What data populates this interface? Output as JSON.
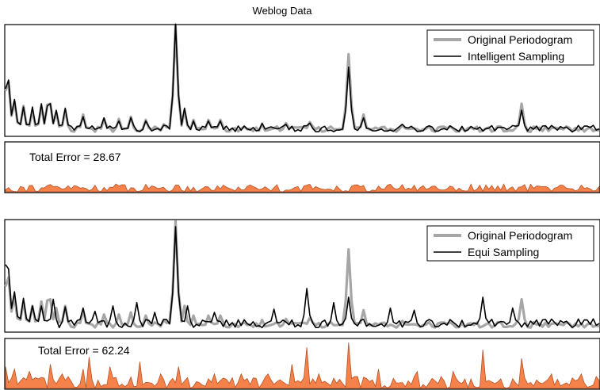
{
  "title": "Weblog Data",
  "colors": {
    "original": "#a6a6a6",
    "approx": "#000000",
    "error_fill": "#f4824a",
    "error_stroke": "#b4552a",
    "frame": "#000000"
  },
  "chart_data": [
    {
      "type": "line",
      "title": "Weblog Data",
      "xlabel": "",
      "ylabel": "",
      "ylim": [
        0,
        1.0
      ],
      "x_count": 200,
      "legend_placement": "top-right",
      "grid": false,
      "series": [
        {
          "name": "Original Periodogram",
          "peaks": [
            [
              0,
              0.4
            ],
            [
              1,
              0.48
            ],
            [
              3,
              0.3
            ],
            [
              6,
              0.26
            ],
            [
              9,
              0.22
            ],
            [
              12,
              0.26
            ],
            [
              14,
              0.27
            ],
            [
              15,
              0.28
            ],
            [
              17,
              0.2
            ],
            [
              20,
              0.22
            ],
            [
              26,
              0.18
            ],
            [
              33,
              0.14
            ],
            [
              38,
              0.14
            ],
            [
              42,
              0.16
            ],
            [
              47,
              0.13
            ],
            [
              53,
              0.09
            ],
            [
              57,
              1.0
            ],
            [
              60,
              0.22
            ],
            [
              63,
              0.13
            ],
            [
              68,
              0.13
            ],
            [
              72,
              0.13
            ],
            [
              86,
              0.09
            ],
            [
              94,
              0.1
            ],
            [
              102,
              0.11
            ],
            [
              115,
              0.74
            ],
            [
              120,
              0.18
            ],
            [
              133,
              0.08
            ],
            [
              142,
              0.07
            ],
            [
              156,
              0.06
            ],
            [
              165,
              0.07
            ],
            [
              173,
              0.28
            ],
            [
              188,
              0.07
            ],
            [
              196,
              0.06
            ]
          ],
          "noise": 0.05
        },
        {
          "name": "Intelligent Sampling",
          "peaks": [
            [
              0,
              0.42
            ],
            [
              1,
              0.5
            ],
            [
              3,
              0.32
            ],
            [
              6,
              0.25
            ],
            [
              9,
              0.25
            ],
            [
              12,
              0.28
            ],
            [
              14,
              0.26
            ],
            [
              15,
              0.28
            ],
            [
              17,
              0.22
            ],
            [
              20,
              0.24
            ],
            [
              26,
              0.16
            ],
            [
              33,
              0.15
            ],
            [
              38,
              0.12
            ],
            [
              42,
              0.15
            ],
            [
              47,
              0.12
            ],
            [
              53,
              0.08
            ],
            [
              57,
              1.02
            ],
            [
              60,
              0.24
            ],
            [
              63,
              0.12
            ],
            [
              68,
              0.12
            ],
            [
              72,
              0.12
            ],
            [
              86,
              0.1
            ],
            [
              94,
              0.09
            ],
            [
              102,
              0.1
            ],
            [
              115,
              0.62
            ],
            [
              120,
              0.15
            ],
            [
              133,
              0.09
            ],
            [
              142,
              0.07
            ],
            [
              156,
              0.07
            ],
            [
              165,
              0.06
            ],
            [
              173,
              0.22
            ],
            [
              188,
              0.06
            ],
            [
              196,
              0.06
            ]
          ],
          "noise": 0.06
        }
      ]
    },
    {
      "type": "area",
      "label": "Total Error = 28.67",
      "ylim": [
        0,
        1.0
      ],
      "x_count": 200,
      "values_scale": 0.12,
      "grid": false
    },
    {
      "type": "line",
      "xlabel": "",
      "ylabel": "",
      "ylim": [
        0,
        1.0
      ],
      "x_count": 200,
      "legend_placement": "top-right",
      "grid": false,
      "series": [
        {
          "name": "Original Periodogram",
          "peaks": [
            [
              0,
              0.4
            ],
            [
              1,
              0.48
            ],
            [
              3,
              0.3
            ],
            [
              6,
              0.26
            ],
            [
              9,
              0.22
            ],
            [
              12,
              0.26
            ],
            [
              14,
              0.27
            ],
            [
              15,
              0.28
            ],
            [
              17,
              0.2
            ],
            [
              20,
              0.22
            ],
            [
              26,
              0.18
            ],
            [
              33,
              0.14
            ],
            [
              38,
              0.14
            ],
            [
              42,
              0.16
            ],
            [
              47,
              0.13
            ],
            [
              53,
              0.09
            ],
            [
              57,
              1.0
            ],
            [
              60,
              0.22
            ],
            [
              63,
              0.13
            ],
            [
              68,
              0.13
            ],
            [
              72,
              0.13
            ],
            [
              86,
              0.09
            ],
            [
              94,
              0.1
            ],
            [
              102,
              0.11
            ],
            [
              115,
              0.74
            ],
            [
              120,
              0.18
            ],
            [
              133,
              0.08
            ],
            [
              142,
              0.07
            ],
            [
              156,
              0.06
            ],
            [
              165,
              0.07
            ],
            [
              173,
              0.28
            ],
            [
              188,
              0.07
            ],
            [
              196,
              0.06
            ]
          ],
          "noise": 0.05
        },
        {
          "name": "Equi Sampling",
          "peaks": [
            [
              0,
              0.6
            ],
            [
              1,
              0.56
            ],
            [
              3,
              0.35
            ],
            [
              6,
              0.29
            ],
            [
              9,
              0.22
            ],
            [
              12,
              0.22
            ],
            [
              16,
              0.28
            ],
            [
              20,
              0.21
            ],
            [
              26,
              0.2
            ],
            [
              30,
              0.17
            ],
            [
              36,
              0.22
            ],
            [
              44,
              0.25
            ],
            [
              50,
              0.16
            ],
            [
              57,
              0.95
            ],
            [
              61,
              0.22
            ],
            [
              70,
              0.16
            ],
            [
              90,
              0.19
            ],
            [
              101,
              0.38
            ],
            [
              110,
              0.25
            ],
            [
              115,
              0.3
            ],
            [
              129,
              0.2
            ],
            [
              137,
              0.18
            ],
            [
              160,
              0.3
            ],
            [
              170,
              0.2
            ]
          ],
          "noise": 0.08
        }
      ]
    },
    {
      "type": "area",
      "label": "Total Error = 62.24",
      "ylim": [
        0,
        1.0
      ],
      "x_count": 200,
      "values_scale": 1.0,
      "spikes": [
        [
          0,
          0.45
        ],
        [
          3,
          0.4
        ],
        [
          8,
          0.35
        ],
        [
          15,
          0.5
        ],
        [
          19,
          0.3
        ],
        [
          26,
          0.4
        ],
        [
          28,
          0.65
        ],
        [
          35,
          0.45
        ],
        [
          45,
          0.55
        ],
        [
          52,
          0.3
        ],
        [
          58,
          0.45
        ],
        [
          70,
          0.3
        ],
        [
          79,
          0.3
        ],
        [
          88,
          0.3
        ],
        [
          96,
          0.5
        ],
        [
          101,
          0.85
        ],
        [
          105,
          0.3
        ],
        [
          115,
          0.95
        ],
        [
          125,
          0.4
        ],
        [
          138,
          0.35
        ],
        [
          150,
          0.35
        ],
        [
          160,
          0.8
        ],
        [
          173,
          0.62
        ],
        [
          183,
          0.3
        ],
        [
          193,
          0.3
        ]
      ],
      "grid": false
    }
  ]
}
